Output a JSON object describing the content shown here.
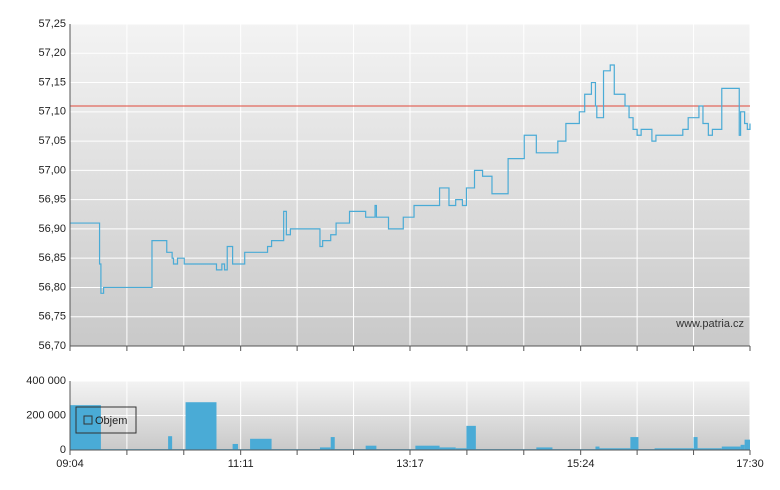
{
  "chart_data": [
    {
      "type": "line",
      "xlim": [
        "09:04",
        "17:30"
      ],
      "xticks": [
        "09:04",
        "11:11",
        "13:17",
        "15:24",
        "17:30"
      ],
      "ylim": [
        56.7,
        57.25
      ],
      "yticks": [
        {
          "value": 56.7,
          "label": "56,70"
        },
        {
          "value": 56.75,
          "label": "56,75"
        },
        {
          "value": 56.8,
          "label": "56,80"
        },
        {
          "value": 56.85,
          "label": "56,85"
        },
        {
          "value": 56.9,
          "label": "56,90"
        },
        {
          "value": 56.95,
          "label": "56,95"
        },
        {
          "value": 57.0,
          "label": "57,00"
        },
        {
          "value": 57.05,
          "label": "57,05"
        },
        {
          "value": 57.1,
          "label": "57,10"
        },
        {
          "value": 57.15,
          "label": "57,15"
        },
        {
          "value": 57.2,
          "label": "57,20"
        },
        {
          "value": 57.25,
          "label": "57,25"
        }
      ],
      "grid": true,
      "step": true,
      "reference_line": {
        "value": 57.11,
        "color": "#e0473a"
      },
      "watermark": "www.patria.cz",
      "series": [
        {
          "color": "#4aabd6",
          "x": [
            "09:04",
            "09:26",
            "09:27",
            "09:29",
            "09:31",
            "10:05",
            "10:16",
            "10:20",
            "10:21",
            "10:24",
            "10:29",
            "10:53",
            "10:57",
            "10:59",
            "11:01",
            "11:05",
            "11:14",
            "11:31",
            "11:34",
            "11:43",
            "11:45",
            "11:48",
            "12:10",
            "12:12",
            "12:18",
            "12:22",
            "12:32",
            "12:44",
            "12:51",
            "12:52",
            "13:01",
            "13:12",
            "13:20",
            "13:39",
            "13:46",
            "13:51",
            "13:56",
            "13:59",
            "14:05",
            "14:11",
            "14:18",
            "14:30",
            "14:42",
            "14:51",
            "15:07",
            "15:13",
            "15:23",
            "15:27",
            "15:32",
            "15:35",
            "15:36",
            "15:41",
            "15:46",
            "15:49",
            "15:57",
            "16:00",
            "16:03",
            "16:06",
            "16:09",
            "16:17",
            "16:20",
            "16:40",
            "16:44",
            "16:52",
            "16:55",
            "16:59",
            "17:02",
            "17:09",
            "17:22",
            "17:23",
            "17:26",
            "17:28",
            "17:30"
          ],
          "values": [
            56.91,
            56.84,
            56.79,
            56.8,
            56.8,
            56.88,
            56.86,
            56.85,
            56.84,
            56.85,
            56.84,
            56.83,
            56.84,
            56.83,
            56.87,
            56.84,
            56.86,
            56.87,
            56.88,
            56.93,
            56.89,
            56.9,
            56.87,
            56.88,
            56.89,
            56.91,
            56.93,
            56.92,
            56.94,
            56.92,
            56.9,
            56.92,
            56.94,
            56.97,
            56.94,
            56.95,
            56.94,
            56.97,
            57.0,
            56.99,
            56.96,
            57.02,
            57.06,
            57.03,
            57.05,
            57.08,
            57.1,
            57.13,
            57.15,
            57.11,
            57.09,
            57.17,
            57.18,
            57.13,
            57.11,
            57.09,
            57.07,
            57.06,
            57.07,
            57.05,
            57.06,
            57.07,
            57.09,
            57.11,
            57.08,
            57.06,
            57.07,
            57.14,
            57.06,
            57.1,
            57.08,
            57.07,
            57.08
          ]
        }
      ]
    },
    {
      "type": "histogram",
      "xlim": [
        "09:04",
        "17:30"
      ],
      "xticks": [
        "09:04",
        "11:11",
        "13:17",
        "15:24",
        "17:30"
      ],
      "ylim": [
        0,
        400000
      ],
      "yticks": [
        0,
        {
          "value": 200000,
          "label": "200 000"
        },
        {
          "value": 400000,
          "label": "400 000"
        }
      ],
      "grid": true,
      "legend": "top-left",
      "bins": [
        "09:04",
        "09:27",
        "10:04",
        "10:17",
        "10:20",
        "10:30",
        "10:53",
        "11:05",
        "11:09",
        "11:18",
        "11:34",
        "12:10",
        "12:18",
        "12:21",
        "12:44",
        "12:52",
        "13:21",
        "13:39",
        "13:51",
        "13:59",
        "14:06",
        "14:51",
        "15:03",
        "15:35",
        "15:38",
        "16:01",
        "16:07",
        "16:19",
        "16:48",
        "16:51",
        "17:09",
        "17:23",
        "17:26",
        "17:30"
      ],
      "series": [
        {
          "name": "Objem",
          "color": "#4aabd6",
          "values": [
            260000,
            5000,
            5000,
            80000,
            5000,
            277000,
            5000,
            35000,
            5000,
            65000,
            5000,
            15000,
            75000,
            5000,
            25000,
            5000,
            25000,
            15000,
            10000,
            140000,
            5000,
            15000,
            5000,
            20000,
            10000,
            75000,
            5000,
            10000,
            75000,
            10000,
            20000,
            30000,
            60000
          ]
        }
      ]
    }
  ]
}
